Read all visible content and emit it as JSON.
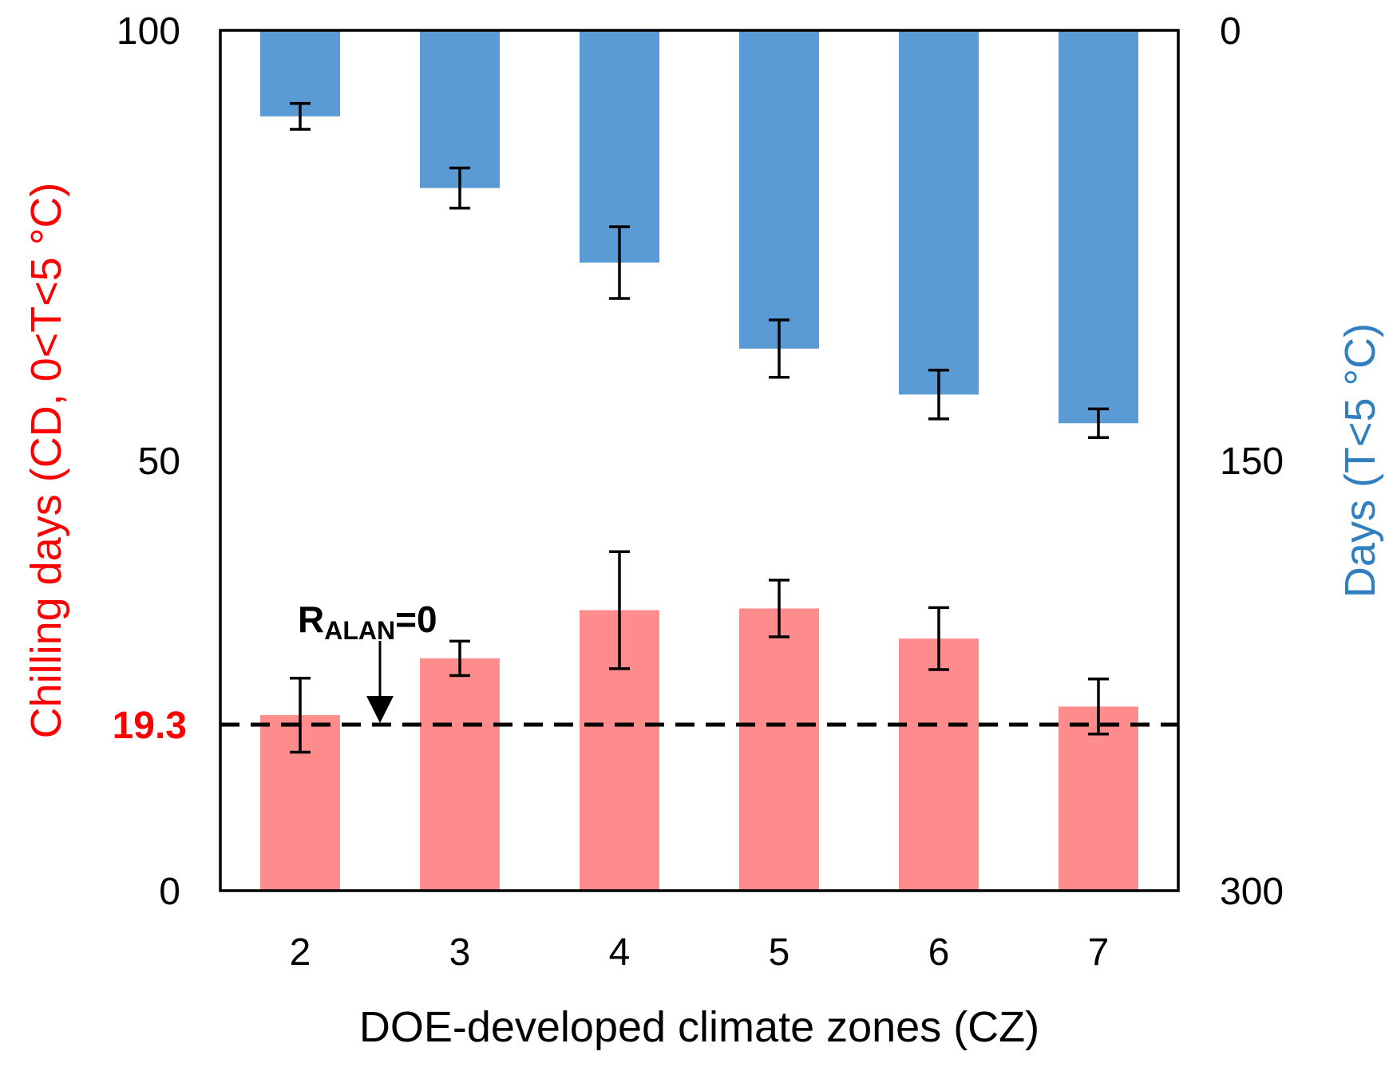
{
  "chart_data": {
    "type": "bar",
    "title": "",
    "xlabel": "DOE-developed climate zones (CZ)",
    "categories": [
      "2",
      "3",
      "4",
      "5",
      "6",
      "7"
    ],
    "left_axis": {
      "label": "Chilling days (CD, 0<T<5 °C)",
      "ylim": [
        0,
        100
      ],
      "ticks": [
        0,
        50,
        100
      ],
      "highlight_tick": 19.3,
      "highlight_label": "19.3"
    },
    "right_axis": {
      "label": "Days (T<5 °C)",
      "ylim": [
        0,
        300
      ],
      "inverted": true,
      "ticks": [
        0,
        150,
        300
      ]
    },
    "series": [
      {
        "name": "Chilling days (CD, 0<T<5 °C)",
        "axis": "left",
        "color": "#ff8c8c",
        "values": [
          20.4,
          27,
          32.6,
          32.8,
          29.3,
          21.4
        ],
        "errors": [
          4.3,
          2,
          6.8,
          3.3,
          3.6,
          3.2
        ]
      },
      {
        "name": "Days (T<5 °C)",
        "axis": "right",
        "color": "#5b9bd5",
        "values": [
          30,
          55,
          81,
          111,
          127,
          137
        ],
        "errors": [
          4.5,
          7,
          12.5,
          10,
          8.5,
          5
        ]
      }
    ],
    "reference_line": {
      "axis": "left",
      "value": 19.3,
      "style": "dashed",
      "color": "#000000"
    },
    "annotation": {
      "text_main": "R",
      "text_sub": "ALAN",
      "text_tail": "=0",
      "arrow_target_x_between": [
        "2",
        "3"
      ],
      "arrow_target_value": 19.3
    }
  },
  "colors": {
    "left_axis_text": "#ff0000",
    "right_axis_text": "#2f7fc1",
    "frame": "#000000"
  }
}
